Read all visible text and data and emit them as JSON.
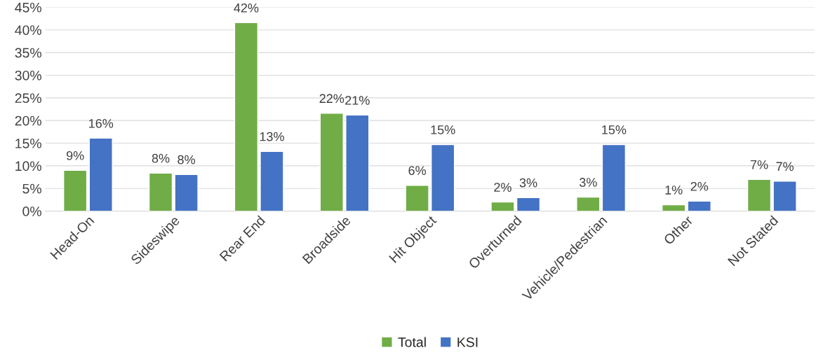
{
  "chart_data": {
    "type": "bar",
    "categories": [
      "Head-On",
      "Sideswipe",
      "Rear End",
      "Broadside",
      "Hit Object",
      "Overturned",
      "Vehicle/Pedestrian",
      "Other",
      "Not Stated"
    ],
    "series": [
      {
        "name": "Total",
        "color": "#70ad47",
        "values": [
          9.0,
          8.4,
          41.6,
          21.6,
          5.7,
          2.0,
          3.1,
          1.4,
          7.0
        ],
        "value_labels": [
          "9%",
          "8%",
          "42%",
          "22%",
          "6%",
          "2%",
          "3%",
          "1%",
          "7%"
        ]
      },
      {
        "name": "KSI",
        "color": "#4472c4",
        "values": [
          16.1,
          8.1,
          13.2,
          21.2,
          14.7,
          3.0,
          14.7,
          2.2,
          6.6
        ],
        "value_labels": [
          "16%",
          "8%",
          "13%",
          "21%",
          "15%",
          "3%",
          "15%",
          "2%",
          "7%"
        ]
      }
    ],
    "ylim": [
      0,
      45
    ],
    "yticks": [
      {
        "value": 0,
        "label": "0%"
      },
      {
        "value": 5,
        "label": "5%"
      },
      {
        "value": 10,
        "label": "10%"
      },
      {
        "value": 15,
        "label": "15%"
      },
      {
        "value": 20,
        "label": "20%"
      },
      {
        "value": 25,
        "label": "25%"
      },
      {
        "value": 30,
        "label": "30%"
      },
      {
        "value": 35,
        "label": "35%"
      },
      {
        "value": 40,
        "label": "40%"
      },
      {
        "value": 45,
        "label": "45%"
      }
    ],
    "grid": "y",
    "legend": "bottom"
  }
}
